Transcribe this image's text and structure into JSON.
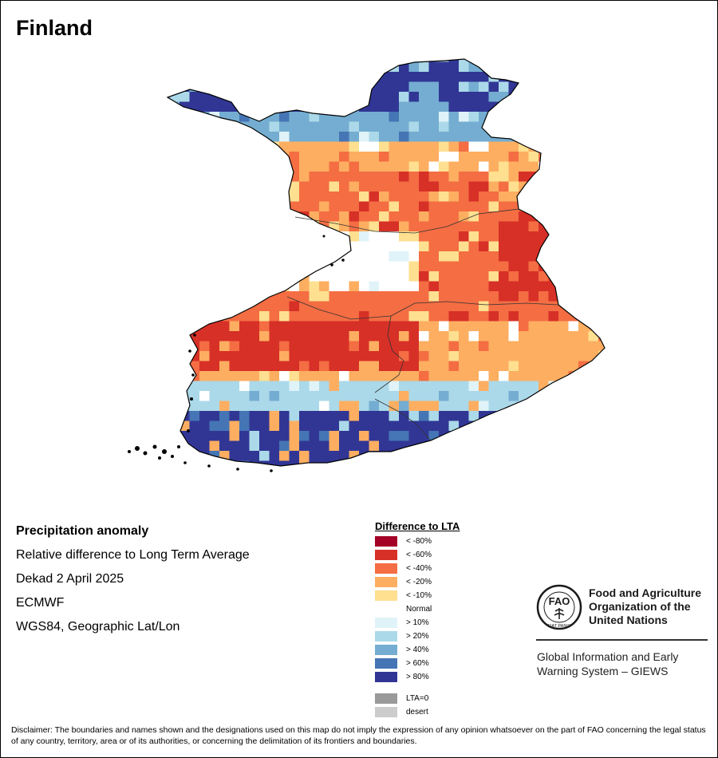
{
  "title": "Finland",
  "info": {
    "variable": "Precipitation anomaly",
    "measure": "Relative difference to Long Term Average",
    "period": "Dekad 2 April 2025",
    "source": "ECMWF",
    "projection": "WGS84, Geographic Lat/Lon"
  },
  "legend": {
    "title": "Difference to LTA",
    "items": [
      {
        "label": "< -80%",
        "color": "#a50026"
      },
      {
        "label": "< -60%",
        "color": "#d73027"
      },
      {
        "label": "< -40%",
        "color": "#f46d43"
      },
      {
        "label": "< -20%",
        "color": "#fdae61"
      },
      {
        "label": "< -10%",
        "color": "#fee090"
      },
      {
        "label": "Normal",
        "color": "#ffffff"
      },
      {
        "label": "> 10%",
        "color": "#e0f3f8"
      },
      {
        "label": "> 20%",
        "color": "#abd9e9"
      },
      {
        "label": "> 40%",
        "color": "#74add1"
      },
      {
        "label": "> 60%",
        "color": "#4575b4"
      },
      {
        "label": "> 80%",
        "color": "#313695"
      }
    ],
    "extra": [
      {
        "label": "LTA=0",
        "color": "#999999"
      },
      {
        "label": "desert",
        "color": "#cccccc"
      }
    ]
  },
  "organization": {
    "name_line1": "Food and Agriculture",
    "name_line2": "Organization of the",
    "name_line3": "United Nations",
    "logo_text": "FAO",
    "logo_motto": "FIAT PANIS",
    "system_line1": "Global Information and Early",
    "system_line2": "Warning System – GIEWS"
  },
  "disclaimer": "Disclaimer: The boundaries and names shown and the designations used on this map do not imply the expression of any opinion whatsoever on the part of FAO concerning the legal status of any country, territory, area or of its authorities, or concerning the delimitation of its frontiers and boundaries.",
  "map_zones": [
    {
      "region": "far-north",
      "anomaly": "> 80%"
    },
    {
      "region": "north-band",
      "anomaly": "> 40%"
    },
    {
      "region": "upper-lapland",
      "anomaly": "< -20%"
    },
    {
      "region": "central-lapland",
      "anomaly": "< -40%"
    },
    {
      "region": "eastern-border",
      "anomaly": "< -60%"
    },
    {
      "region": "central-west",
      "anomaly": "Normal"
    },
    {
      "region": "central-south",
      "anomaly": "< -40%"
    },
    {
      "region": "lake-district",
      "anomaly": "< -60%"
    },
    {
      "region": "south-east",
      "anomaly": "< -20%"
    },
    {
      "region": "south-band",
      "anomaly": "> 20%"
    },
    {
      "region": "south-coast",
      "anomaly": "> 80%"
    }
  ]
}
